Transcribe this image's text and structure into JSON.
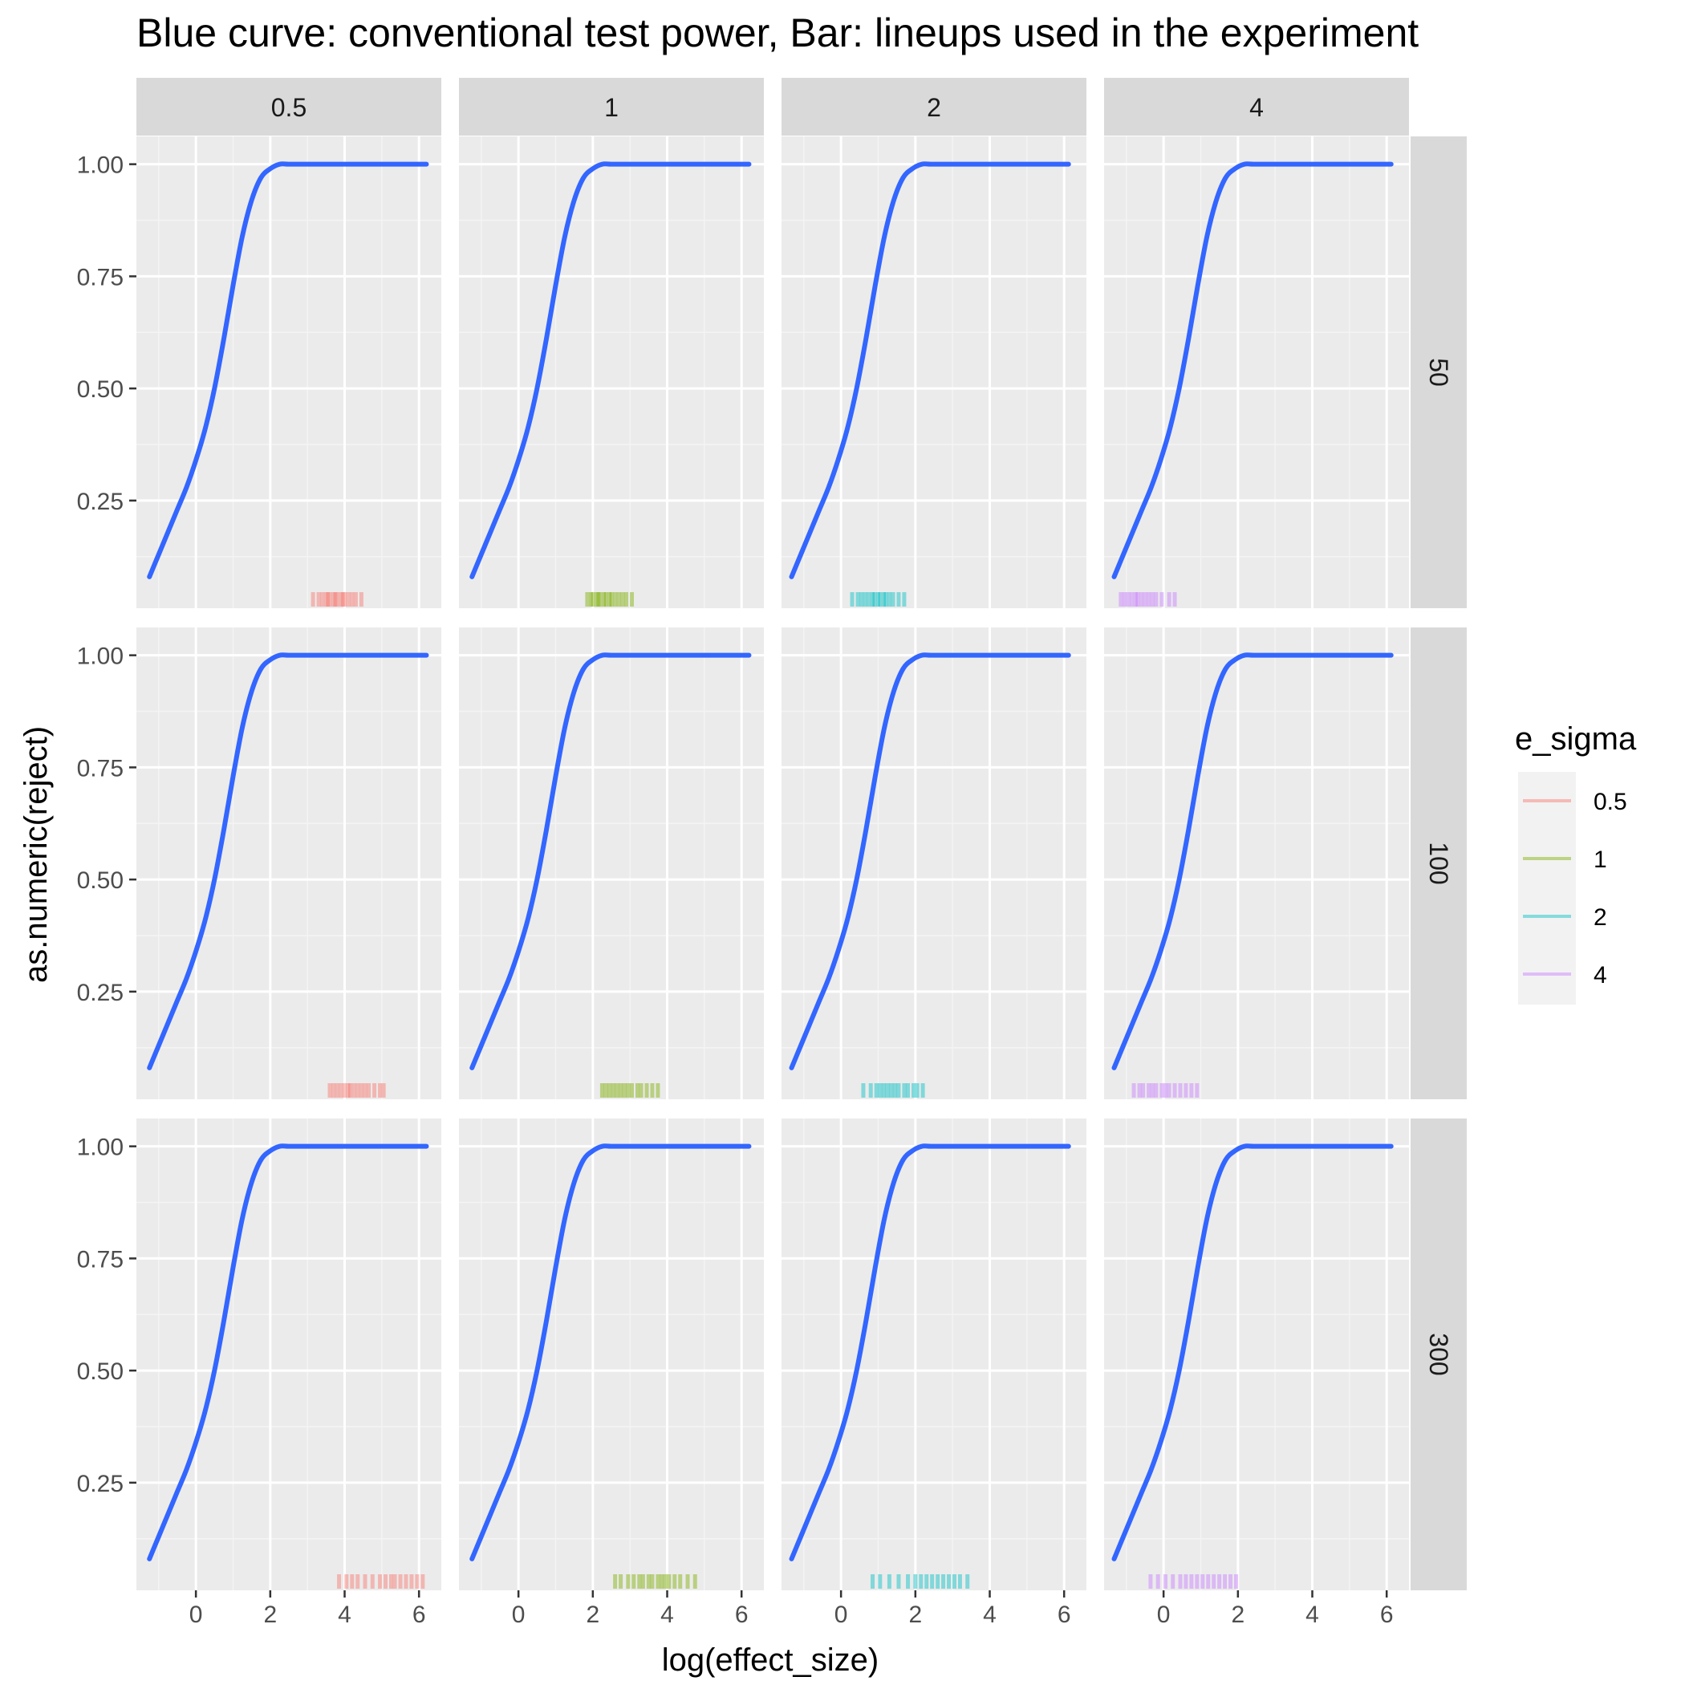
{
  "chart_data": {
    "type": "line",
    "title": "Blue curve: conventional test power, Bar: lineups used in the experiment",
    "xlabel": "log(effect_size)",
    "ylabel": "as.numeric(reject)",
    "xlim": [
      -1.6,
      6.6
    ],
    "ylim": [
      0.01,
      1.062
    ],
    "x_ticks": [
      0,
      2,
      4,
      6
    ],
    "x_tick_labels": [
      "0",
      "2",
      "4",
      "6"
    ],
    "y_ticks": [
      0.25,
      0.5,
      0.75,
      1.0
    ],
    "y_tick_labels": [
      "0.25",
      "0.50",
      "0.75",
      "1.00"
    ],
    "grid": true,
    "facet_cols_var": "e_sigma",
    "facet_cols": [
      "0.5",
      "1",
      "2",
      "4"
    ],
    "facet_rows_var": "n",
    "facet_rows": [
      "50",
      "100",
      "300"
    ],
    "legend": {
      "title": "e_sigma",
      "placement": "right",
      "entries": [
        {
          "label": "0.5",
          "color": "#F8766D"
        },
        {
          "label": "1",
          "color": "#7CAE00"
        },
        {
          "label": "2",
          "color": "#00BFC4"
        },
        {
          "label": "4",
          "color": "#C77CFF"
        }
      ]
    },
    "curve_color": "#3366FF",
    "curve": {
      "x": [
        -1.25,
        -1.0,
        -0.75,
        -0.5,
        -0.25,
        0.0,
        0.25,
        0.5,
        0.75,
        1.0,
        1.25,
        1.5,
        1.75,
        2.0,
        2.25,
        2.5,
        3.0,
        3.5,
        4.0,
        5.0,
        6.2
      ],
      "y": [
        0.08,
        0.13,
        0.18,
        0.23,
        0.28,
        0.34,
        0.41,
        0.5,
        0.61,
        0.73,
        0.84,
        0.92,
        0.97,
        0.99,
        1.0,
        1.0,
        1.0,
        1.0,
        1.0,
        1.0,
        1.0
      ]
    },
    "curve_shift": [
      [
        0.0,
        0.0,
        -0.08,
        -0.08
      ],
      [
        0.0,
        0.0,
        -0.08,
        -0.08
      ],
      [
        0.0,
        0.0,
        -0.08,
        -0.08
      ]
    ],
    "bars": [
      [
        [
          3.15,
          3.3,
          3.4,
          3.5,
          3.55,
          3.6,
          3.7,
          3.75,
          3.8,
          3.9,
          3.95,
          4.0,
          4.1,
          4.2,
          4.3,
          4.45
        ],
        [
          1.85,
          1.95,
          2.0,
          2.1,
          2.15,
          2.2,
          2.3,
          2.35,
          2.45,
          2.5,
          2.6,
          2.7,
          2.8,
          2.9,
          3.05
        ],
        [
          0.3,
          0.45,
          0.55,
          0.65,
          0.75,
          0.85,
          0.9,
          1.0,
          1.05,
          1.15,
          1.2,
          1.3,
          1.4,
          1.55,
          1.7
        ],
        [
          -1.15,
          -1.05,
          -0.95,
          -0.85,
          -0.75,
          -0.7,
          -0.6,
          -0.5,
          -0.4,
          -0.3,
          -0.2,
          -0.05,
          0.15,
          0.3
        ]
      ],
      [
        [
          3.6,
          3.7,
          3.8,
          3.9,
          4.0,
          4.1,
          4.15,
          4.25,
          4.35,
          4.45,
          4.55,
          4.65,
          4.8,
          4.95,
          5.05
        ],
        [
          2.25,
          2.35,
          2.45,
          2.55,
          2.65,
          2.75,
          2.85,
          2.95,
          3.05,
          3.2,
          3.3,
          3.45,
          3.6,
          3.75
        ],
        [
          0.6,
          0.8,
          0.95,
          1.05,
          1.15,
          1.25,
          1.35,
          1.45,
          1.55,
          1.7,
          1.8,
          1.95,
          2.05,
          2.2
        ],
        [
          -0.8,
          -0.65,
          -0.55,
          -0.4,
          -0.3,
          -0.2,
          -0.05,
          0.05,
          0.15,
          0.3,
          0.45,
          0.6,
          0.75,
          0.9
        ]
      ],
      [
        [
          3.85,
          4.05,
          4.2,
          4.35,
          4.55,
          4.75,
          4.95,
          5.1,
          5.25,
          5.35,
          5.5,
          5.65,
          5.8,
          5.95,
          6.1
        ],
        [
          2.6,
          2.75,
          2.95,
          3.1,
          3.25,
          3.35,
          3.5,
          3.6,
          3.75,
          3.85,
          3.95,
          4.05,
          4.2,
          4.35,
          4.55,
          4.75
        ],
        [
          0.85,
          1.05,
          1.3,
          1.55,
          1.8,
          2.0,
          2.15,
          2.3,
          2.45,
          2.6,
          2.75,
          2.9,
          3.05,
          3.2,
          3.4
        ],
        [
          -0.35,
          -0.15,
          0.05,
          0.25,
          0.45,
          0.6,
          0.75,
          0.9,
          1.05,
          1.2,
          1.35,
          1.5,
          1.65,
          1.8,
          1.95
        ]
      ]
    ]
  }
}
